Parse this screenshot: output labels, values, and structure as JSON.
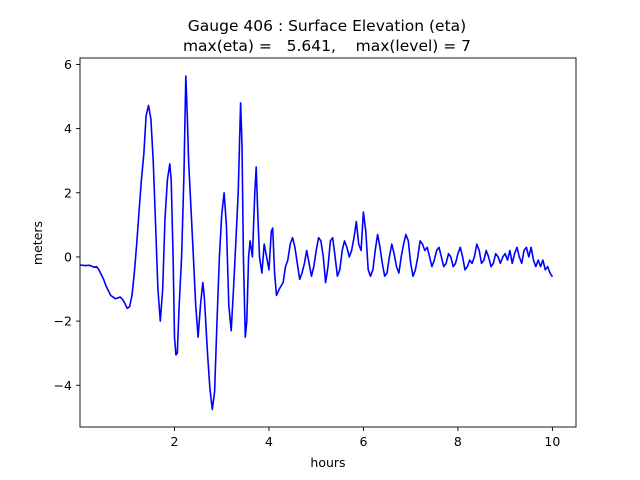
{
  "chart_data": {
    "type": "line",
    "title": "Gauge 406 : Surface Elevation (eta)",
    "subtitle": "max(eta) =   5.641,    max(level) = 7",
    "xlabel": "hours",
    "ylabel": "meters",
    "xlim": [
      0.0,
      10.5
    ],
    "ylim": [
      -5.3,
      6.2
    ],
    "xticks": [
      2,
      4,
      6,
      8,
      10
    ],
    "yticks": [
      -4,
      -2,
      0,
      2,
      4,
      6
    ],
    "grid": false,
    "line_color": "#0000ff",
    "series": [
      {
        "name": "eta",
        "points": [
          [
            0.0,
            -0.25
          ],
          [
            0.1,
            -0.27
          ],
          [
            0.2,
            -0.26
          ],
          [
            0.3,
            -0.32
          ],
          [
            0.35,
            -0.3
          ],
          [
            0.4,
            -0.4
          ],
          [
            0.45,
            -0.55
          ],
          [
            0.5,
            -0.7
          ],
          [
            0.55,
            -0.9
          ],
          [
            0.6,
            -1.05
          ],
          [
            0.65,
            -1.2
          ],
          [
            0.7,
            -1.25
          ],
          [
            0.75,
            -1.3
          ],
          [
            0.8,
            -1.28
          ],
          [
            0.85,
            -1.25
          ],
          [
            0.9,
            -1.32
          ],
          [
            0.95,
            -1.45
          ],
          [
            1.0,
            -1.6
          ],
          [
            1.05,
            -1.55
          ],
          [
            1.1,
            -1.2
          ],
          [
            1.15,
            -0.5
          ],
          [
            1.2,
            0.4
          ],
          [
            1.25,
            1.4
          ],
          [
            1.3,
            2.4
          ],
          [
            1.35,
            3.2
          ],
          [
            1.4,
            4.4
          ],
          [
            1.45,
            4.72
          ],
          [
            1.5,
            4.3
          ],
          [
            1.55,
            3.0
          ],
          [
            1.6,
            1.0
          ],
          [
            1.65,
            -1.0
          ],
          [
            1.7,
            -2.0
          ],
          [
            1.75,
            -1.0
          ],
          [
            1.8,
            1.2
          ],
          [
            1.85,
            2.4
          ],
          [
            1.9,
            2.9
          ],
          [
            1.93,
            2.4
          ],
          [
            1.97,
            0.0
          ],
          [
            2.0,
            -2.5
          ],
          [
            2.03,
            -3.05
          ],
          [
            2.06,
            -3.0
          ],
          [
            2.1,
            -1.5
          ],
          [
            2.15,
            0.0
          ],
          [
            2.2,
            2.5
          ],
          [
            2.24,
            5.64
          ],
          [
            2.27,
            4.5
          ],
          [
            2.3,
            3.0
          ],
          [
            2.35,
            1.5
          ],
          [
            2.4,
            0.0
          ],
          [
            2.45,
            -1.5
          ],
          [
            2.5,
            -2.5
          ],
          [
            2.55,
            -1.5
          ],
          [
            2.6,
            -0.8
          ],
          [
            2.63,
            -1.2
          ],
          [
            2.66,
            -2.0
          ],
          [
            2.7,
            -3.0
          ],
          [
            2.75,
            -4.1
          ],
          [
            2.8,
            -4.75
          ],
          [
            2.85,
            -4.2
          ],
          [
            2.9,
            -2.0
          ],
          [
            2.95,
            0.0
          ],
          [
            3.0,
            1.3
          ],
          [
            3.05,
            2.0
          ],
          [
            3.1,
            1.0
          ],
          [
            3.15,
            -1.5
          ],
          [
            3.2,
            -2.3
          ],
          [
            3.25,
            -1.0
          ],
          [
            3.3,
            0.5
          ],
          [
            3.35,
            2.0
          ],
          [
            3.4,
            4.8
          ],
          [
            3.43,
            3.5
          ],
          [
            3.46,
            0.0
          ],
          [
            3.5,
            -2.5
          ],
          [
            3.53,
            -2.0
          ],
          [
            3.57,
            0.0
          ],
          [
            3.6,
            0.5
          ],
          [
            3.65,
            0.0
          ],
          [
            3.7,
            2.0
          ],
          [
            3.73,
            2.8
          ],
          [
            3.76,
            1.5
          ],
          [
            3.8,
            0.0
          ],
          [
            3.85,
            -0.5
          ],
          [
            3.9,
            0.4
          ],
          [
            3.95,
            0.0
          ],
          [
            4.0,
            -0.4
          ],
          [
            4.05,
            0.8
          ],
          [
            4.08,
            0.9
          ],
          [
            4.12,
            -0.5
          ],
          [
            4.16,
            -1.2
          ],
          [
            4.22,
            -1.0
          ],
          [
            4.3,
            -0.8
          ],
          [
            4.35,
            -0.3
          ],
          [
            4.4,
            -0.1
          ],
          [
            4.45,
            0.4
          ],
          [
            4.5,
            0.6
          ],
          [
            4.55,
            0.3
          ],
          [
            4.6,
            -0.2
          ],
          [
            4.65,
            -0.7
          ],
          [
            4.7,
            -0.5
          ],
          [
            4.75,
            -0.2
          ],
          [
            4.8,
            0.2
          ],
          [
            4.85,
            -0.2
          ],
          [
            4.9,
            -0.6
          ],
          [
            4.95,
            -0.3
          ],
          [
            5.0,
            0.2
          ],
          [
            5.05,
            0.6
          ],
          [
            5.1,
            0.5
          ],
          [
            5.15,
            0.0
          ],
          [
            5.2,
            -0.8
          ],
          [
            5.25,
            -0.3
          ],
          [
            5.3,
            0.5
          ],
          [
            5.35,
            0.6
          ],
          [
            5.4,
            0.0
          ],
          [
            5.45,
            -0.6
          ],
          [
            5.5,
            -0.4
          ],
          [
            5.55,
            0.2
          ],
          [
            5.6,
            0.5
          ],
          [
            5.65,
            0.3
          ],
          [
            5.7,
            0.0
          ],
          [
            5.75,
            0.2
          ],
          [
            5.8,
            0.6
          ],
          [
            5.85,
            1.1
          ],
          [
            5.9,
            0.4
          ],
          [
            5.95,
            0.2
          ],
          [
            6.0,
            1.4
          ],
          [
            6.05,
            0.8
          ],
          [
            6.1,
            -0.4
          ],
          [
            6.15,
            -0.6
          ],
          [
            6.2,
            -0.4
          ],
          [
            6.25,
            0.2
          ],
          [
            6.3,
            0.7
          ],
          [
            6.35,
            0.3
          ],
          [
            6.4,
            -0.2
          ],
          [
            6.45,
            -0.6
          ],
          [
            6.5,
            -0.5
          ],
          [
            6.55,
            0.0
          ],
          [
            6.6,
            0.4
          ],
          [
            6.65,
            0.1
          ],
          [
            6.7,
            -0.3
          ],
          [
            6.75,
            -0.5
          ],
          [
            6.8,
            0.0
          ],
          [
            6.85,
            0.4
          ],
          [
            6.9,
            0.7
          ],
          [
            6.95,
            0.5
          ],
          [
            7.0,
            -0.2
          ],
          [
            7.05,
            -0.6
          ],
          [
            7.1,
            -0.4
          ],
          [
            7.15,
            0.0
          ],
          [
            7.2,
            0.5
          ],
          [
            7.25,
            0.4
          ],
          [
            7.3,
            0.2
          ],
          [
            7.35,
            0.3
          ],
          [
            7.4,
            0.0
          ],
          [
            7.45,
            -0.3
          ],
          [
            7.5,
            -0.1
          ],
          [
            7.55,
            0.2
          ],
          [
            7.6,
            0.3
          ],
          [
            7.65,
            0.0
          ],
          [
            7.7,
            -0.3
          ],
          [
            7.75,
            -0.2
          ],
          [
            7.8,
            0.1
          ],
          [
            7.85,
            0.0
          ],
          [
            7.9,
            -0.3
          ],
          [
            7.95,
            -0.2
          ],
          [
            8.0,
            0.1
          ],
          [
            8.05,
            0.3
          ],
          [
            8.1,
            0.0
          ],
          [
            8.15,
            -0.4
          ],
          [
            8.2,
            -0.3
          ],
          [
            8.25,
            -0.1
          ],
          [
            8.3,
            -0.2
          ],
          [
            8.35,
            0.0
          ],
          [
            8.4,
            0.4
          ],
          [
            8.45,
            0.2
          ],
          [
            8.5,
            -0.2
          ],
          [
            8.55,
            -0.1
          ],
          [
            8.6,
            0.2
          ],
          [
            8.65,
            0.0
          ],
          [
            8.7,
            -0.3
          ],
          [
            8.75,
            -0.2
          ],
          [
            8.8,
            0.1
          ],
          [
            8.85,
            0.0
          ],
          [
            8.9,
            -0.2
          ],
          [
            8.95,
            0.0
          ],
          [
            9.0,
            0.1
          ],
          [
            9.05,
            -0.1
          ],
          [
            9.1,
            0.2
          ],
          [
            9.15,
            -0.2
          ],
          [
            9.2,
            0.1
          ],
          [
            9.25,
            0.3
          ],
          [
            9.3,
            0.0
          ],
          [
            9.35,
            -0.2
          ],
          [
            9.4,
            0.2
          ],
          [
            9.45,
            0.3
          ],
          [
            9.5,
            0.0
          ],
          [
            9.55,
            0.3
          ],
          [
            9.6,
            -0.1
          ],
          [
            9.65,
            -0.3
          ],
          [
            9.7,
            -0.1
          ],
          [
            9.75,
            -0.3
          ],
          [
            9.8,
            -0.1
          ],
          [
            9.85,
            -0.4
          ],
          [
            9.9,
            -0.3
          ],
          [
            9.95,
            -0.5
          ],
          [
            10.0,
            -0.62
          ]
        ]
      }
    ]
  }
}
